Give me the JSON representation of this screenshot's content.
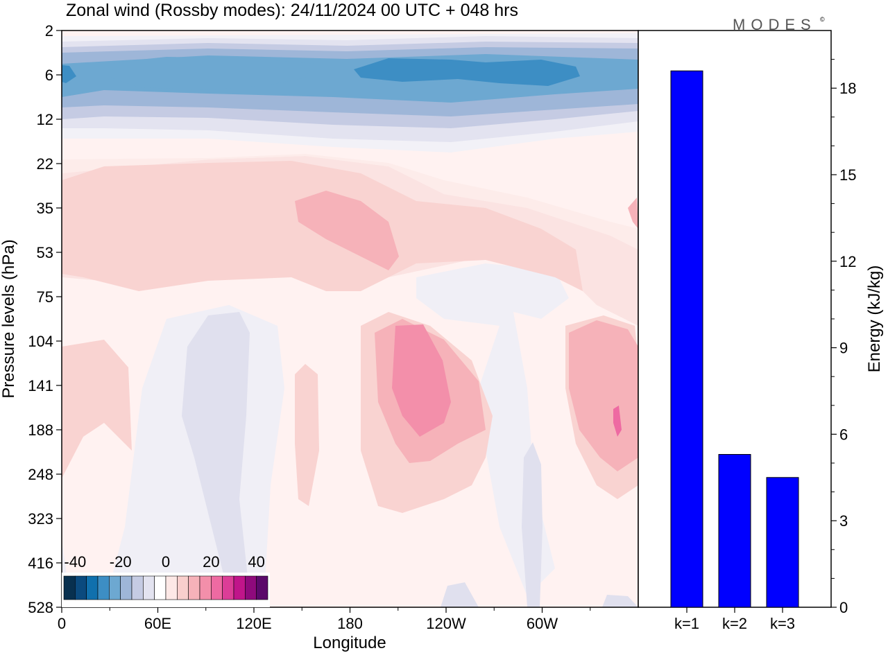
{
  "title": "Zonal wind (Rossby modes):  24/11/2024  00 UTC  + 048 hrs",
  "brand": "MODES",
  "brand_mark": "©",
  "colors": {
    "bar": "#0000ff",
    "bar_outline": "#000000",
    "colorbar": [
      "#08304f",
      "#0b4a7e",
      "#1070ad",
      "#3d8ec4",
      "#6da8d1",
      "#9eb6d8",
      "#c5cbe3",
      "#e3e3f0",
      "#ffffff",
      "#fde8e6",
      "#f9cfcd",
      "#f6b2b9",
      "#f38faa",
      "#ee6aa2",
      "#dc3d97",
      "#c0158a",
      "#8e0a7c",
      "#5a0a6b"
    ]
  },
  "chart_data": [
    {
      "type": "heatmap",
      "variable": "Zonal wind (Rossby modes)",
      "date": "24/11/2024",
      "time": "00 UTC",
      "lead": "+ 048 hrs",
      "xlabel": "Longitude",
      "ylabel": "Pressure levels (hPa)",
      "x_ticks": [
        "0",
        "60E",
        "120E",
        "180",
        "120W",
        "60W"
      ],
      "x_tick_degrees": [
        0,
        60,
        120,
        180,
        240,
        300
      ],
      "xlim": [
        0,
        360
      ],
      "y_levels": [
        "2",
        "6",
        "12",
        "22",
        "35",
        "53",
        "75",
        "104",
        "141",
        "188",
        "248",
        "323",
        "416",
        "528"
      ],
      "colorbar_ticks": [
        "-40",
        "-20",
        "0",
        "20",
        "40"
      ],
      "colorbar_range": [
        -45,
        45
      ],
      "colorbar_step": 5,
      "features": [
        {
          "kind": "easterly jet",
          "approx_min": -30,
          "levels": "4-8 hPa",
          "longitudes": "0-360"
        },
        {
          "kind": "westerly",
          "approx_max": 10,
          "levels": "22-75 hPa",
          "longitudes": "0-180"
        },
        {
          "kind": "westerly maximum",
          "approx_max": 20,
          "levels": "104-188 hPa",
          "longitudes": "near 150W"
        },
        {
          "kind": "westerly",
          "approx_max": 15,
          "levels": "104-248 hPa",
          "longitudes": "near 20W"
        }
      ]
    },
    {
      "type": "bar",
      "categories": [
        "k=1",
        "k=2",
        "k=3"
      ],
      "values": [
        18.6,
        5.3,
        4.5
      ],
      "ylabel": "Energy (kJ/kg)",
      "ylim": [
        0,
        20
      ],
      "y_ticks": [
        0,
        3,
        6,
        9,
        12,
        15,
        18
      ]
    }
  ]
}
